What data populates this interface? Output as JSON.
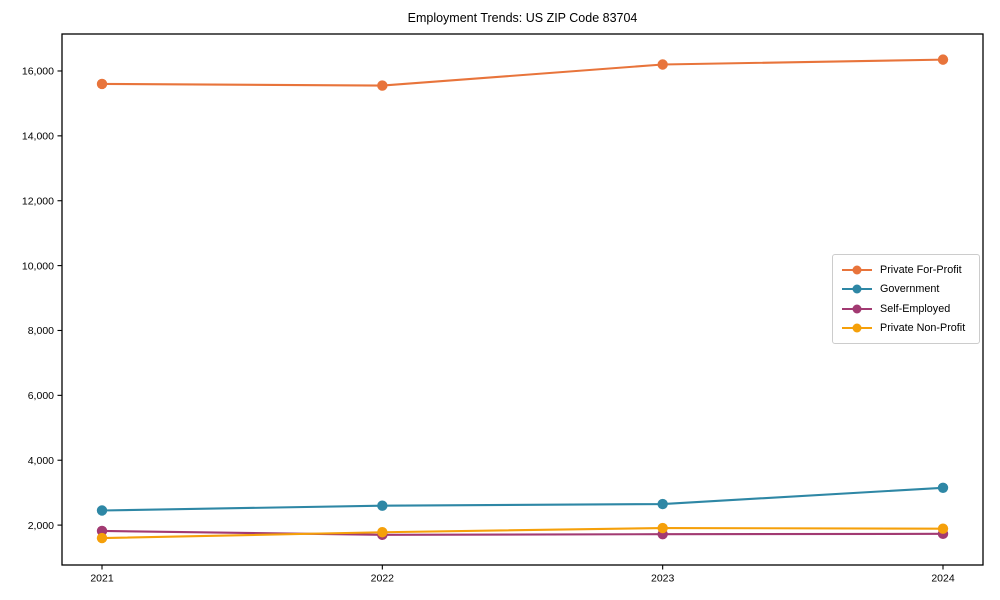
{
  "chart_data": {
    "type": "line",
    "title": "Employment Trends: US ZIP Code 83704",
    "x": [
      "2021",
      "2022",
      "2023",
      "2024"
    ],
    "series": [
      {
        "name": "Private For-Profit",
        "color": "#e8743b",
        "values": [
          15600,
          15550,
          16200,
          16350
        ]
      },
      {
        "name": "Government",
        "color": "#2e87a5",
        "values": [
          2450,
          2600,
          2650,
          3150
        ]
      },
      {
        "name": "Self-Employed",
        "color": "#a23a72",
        "values": [
          1820,
          1700,
          1720,
          1730
        ]
      },
      {
        "name": "Private Non-Profit",
        "color": "#f5a00a",
        "values": [
          1600,
          1780,
          1910,
          1890
        ]
      }
    ],
    "xlabel": "",
    "ylabel": "",
    "ylim": [
      770,
      17140
    ],
    "yticks": [
      2000,
      4000,
      6000,
      8000,
      10000,
      12000,
      14000,
      16000
    ],
    "ytick_labels": [
      "2,000",
      "4,000",
      "6,000",
      "8,000",
      "10,000",
      "12,000",
      "14,000",
      "16,000"
    ],
    "grid": false,
    "legend_position": "center right",
    "axis_color": "#000000",
    "background_color": "#ffffff"
  }
}
